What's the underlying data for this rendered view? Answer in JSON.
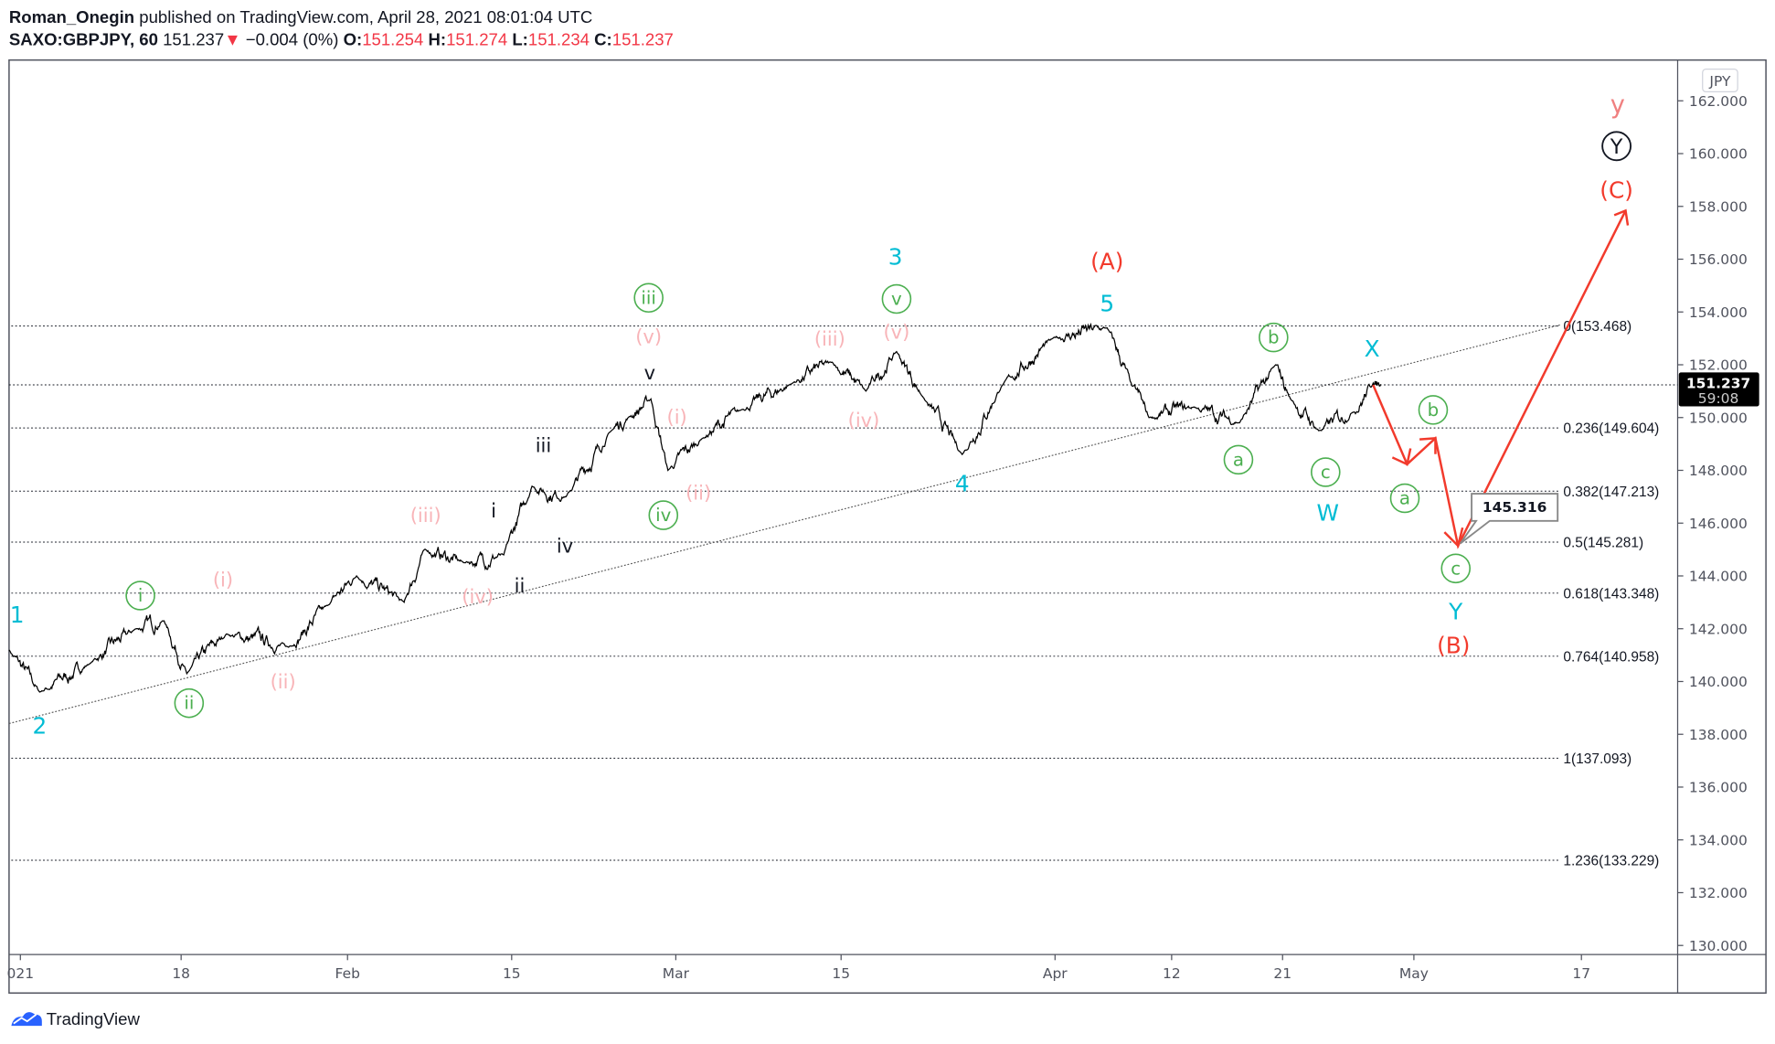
{
  "header": {
    "author": "Roman_Onegin",
    "published": "published on TradingView.com, April 28, 2021 08:01:04 UTC",
    "symbol": "SAXO:GBPJPY, 60",
    "last": "151.237",
    "down_arrow": "▼",
    "change": "−0.004 (0%)",
    "o_label": "O:",
    "o": "151.254",
    "h_label": "H:",
    "h": "151.274",
    "l_label": "L:",
    "l": "151.234",
    "c_label": "C:",
    "c": "151.237"
  },
  "colors": {
    "cyan": "#00bcd4",
    "green": "#4caf50",
    "pink": "#f8b4b8",
    "red": "#f23a2c",
    "black": "#131722",
    "down": "#f23645"
  },
  "axis": {
    "currency": "JPY",
    "price_ticks": [
      "162.000",
      "160.000",
      "158.000",
      "156.000",
      "154.000",
      "152.000",
      "150.000",
      "148.000",
      "146.000",
      "144.000",
      "142.000",
      "140.000",
      "138.000",
      "136.000",
      "134.000",
      "132.000",
      "130.000"
    ],
    "date_ticks": [
      "021",
      "18",
      "Feb",
      "15",
      "Mar",
      "15",
      "Apr",
      "12",
      "21",
      "May",
      "17"
    ],
    "current_price": "151.237",
    "countdown": "59:08"
  },
  "fib_levels": [
    {
      "label": "0(153.468)",
      "price": 153.468
    },
    {
      "label": "0.236(149.604)",
      "price": 149.604
    },
    {
      "label": "0.382(147.213)",
      "price": 147.213
    },
    {
      "label": "0.5(145.281)",
      "price": 145.281
    },
    {
      "label": "0.618(143.348)",
      "price": 143.348
    },
    {
      "label": "0.764(140.958)",
      "price": 140.958
    },
    {
      "label": "1(137.093)",
      "price": 137.093
    },
    {
      "label": "1.236(133.229)",
      "price": 133.229
    }
  ],
  "wave_labels": {
    "cyan": [
      "1",
      "2",
      "3",
      "4",
      "5",
      "W",
      "X",
      "Y"
    ],
    "green": [
      "i",
      "ii",
      "iii",
      "iv",
      "v",
      "a",
      "b",
      "c",
      "b",
      "a",
      "c"
    ],
    "pink": [
      "(i)",
      "(ii)",
      "(iii)",
      "(iv)",
      "(v)",
      "(i)",
      "(ii)",
      "(iii)",
      "(iv)",
      "(v)",
      "y"
    ],
    "black": [
      "i",
      "ii",
      "iii",
      "iv",
      "v",
      "Y"
    ],
    "red": [
      "(A)",
      "(B)",
      "(C)"
    ]
  },
  "callout": "145.316",
  "footer": {
    "brand": "TradingView"
  },
  "chart_data": {
    "type": "line",
    "title": "SAXO:GBPJPY, 60",
    "ylabel": "JPY",
    "ylim": [
      129.5,
      163.5
    ],
    "note": "approximate hourly close waypoints",
    "series": [
      {
        "name": "GBPJPY",
        "values": [
          141.2,
          139.6,
          140.7,
          142.0,
          142.3,
          140.3,
          141.8,
          141.3,
          142.9,
          144.0,
          143.0,
          145.0,
          144.5,
          144.8,
          147.4,
          147.0,
          149.5,
          150.0,
          150.7,
          148.0,
          149.2,
          150.3,
          151.3,
          152.1,
          151.0,
          152.5,
          150.8,
          148.6,
          151.2,
          153.0,
          153.4,
          151.2,
          150.0,
          150.4,
          149.8,
          152.0,
          150.7,
          149.5,
          150.2,
          151.3,
          151.24
        ]
      }
    ],
    "projection": [
      151.24,
      148.1,
      149.2,
      145.316,
      158.0
    ]
  }
}
